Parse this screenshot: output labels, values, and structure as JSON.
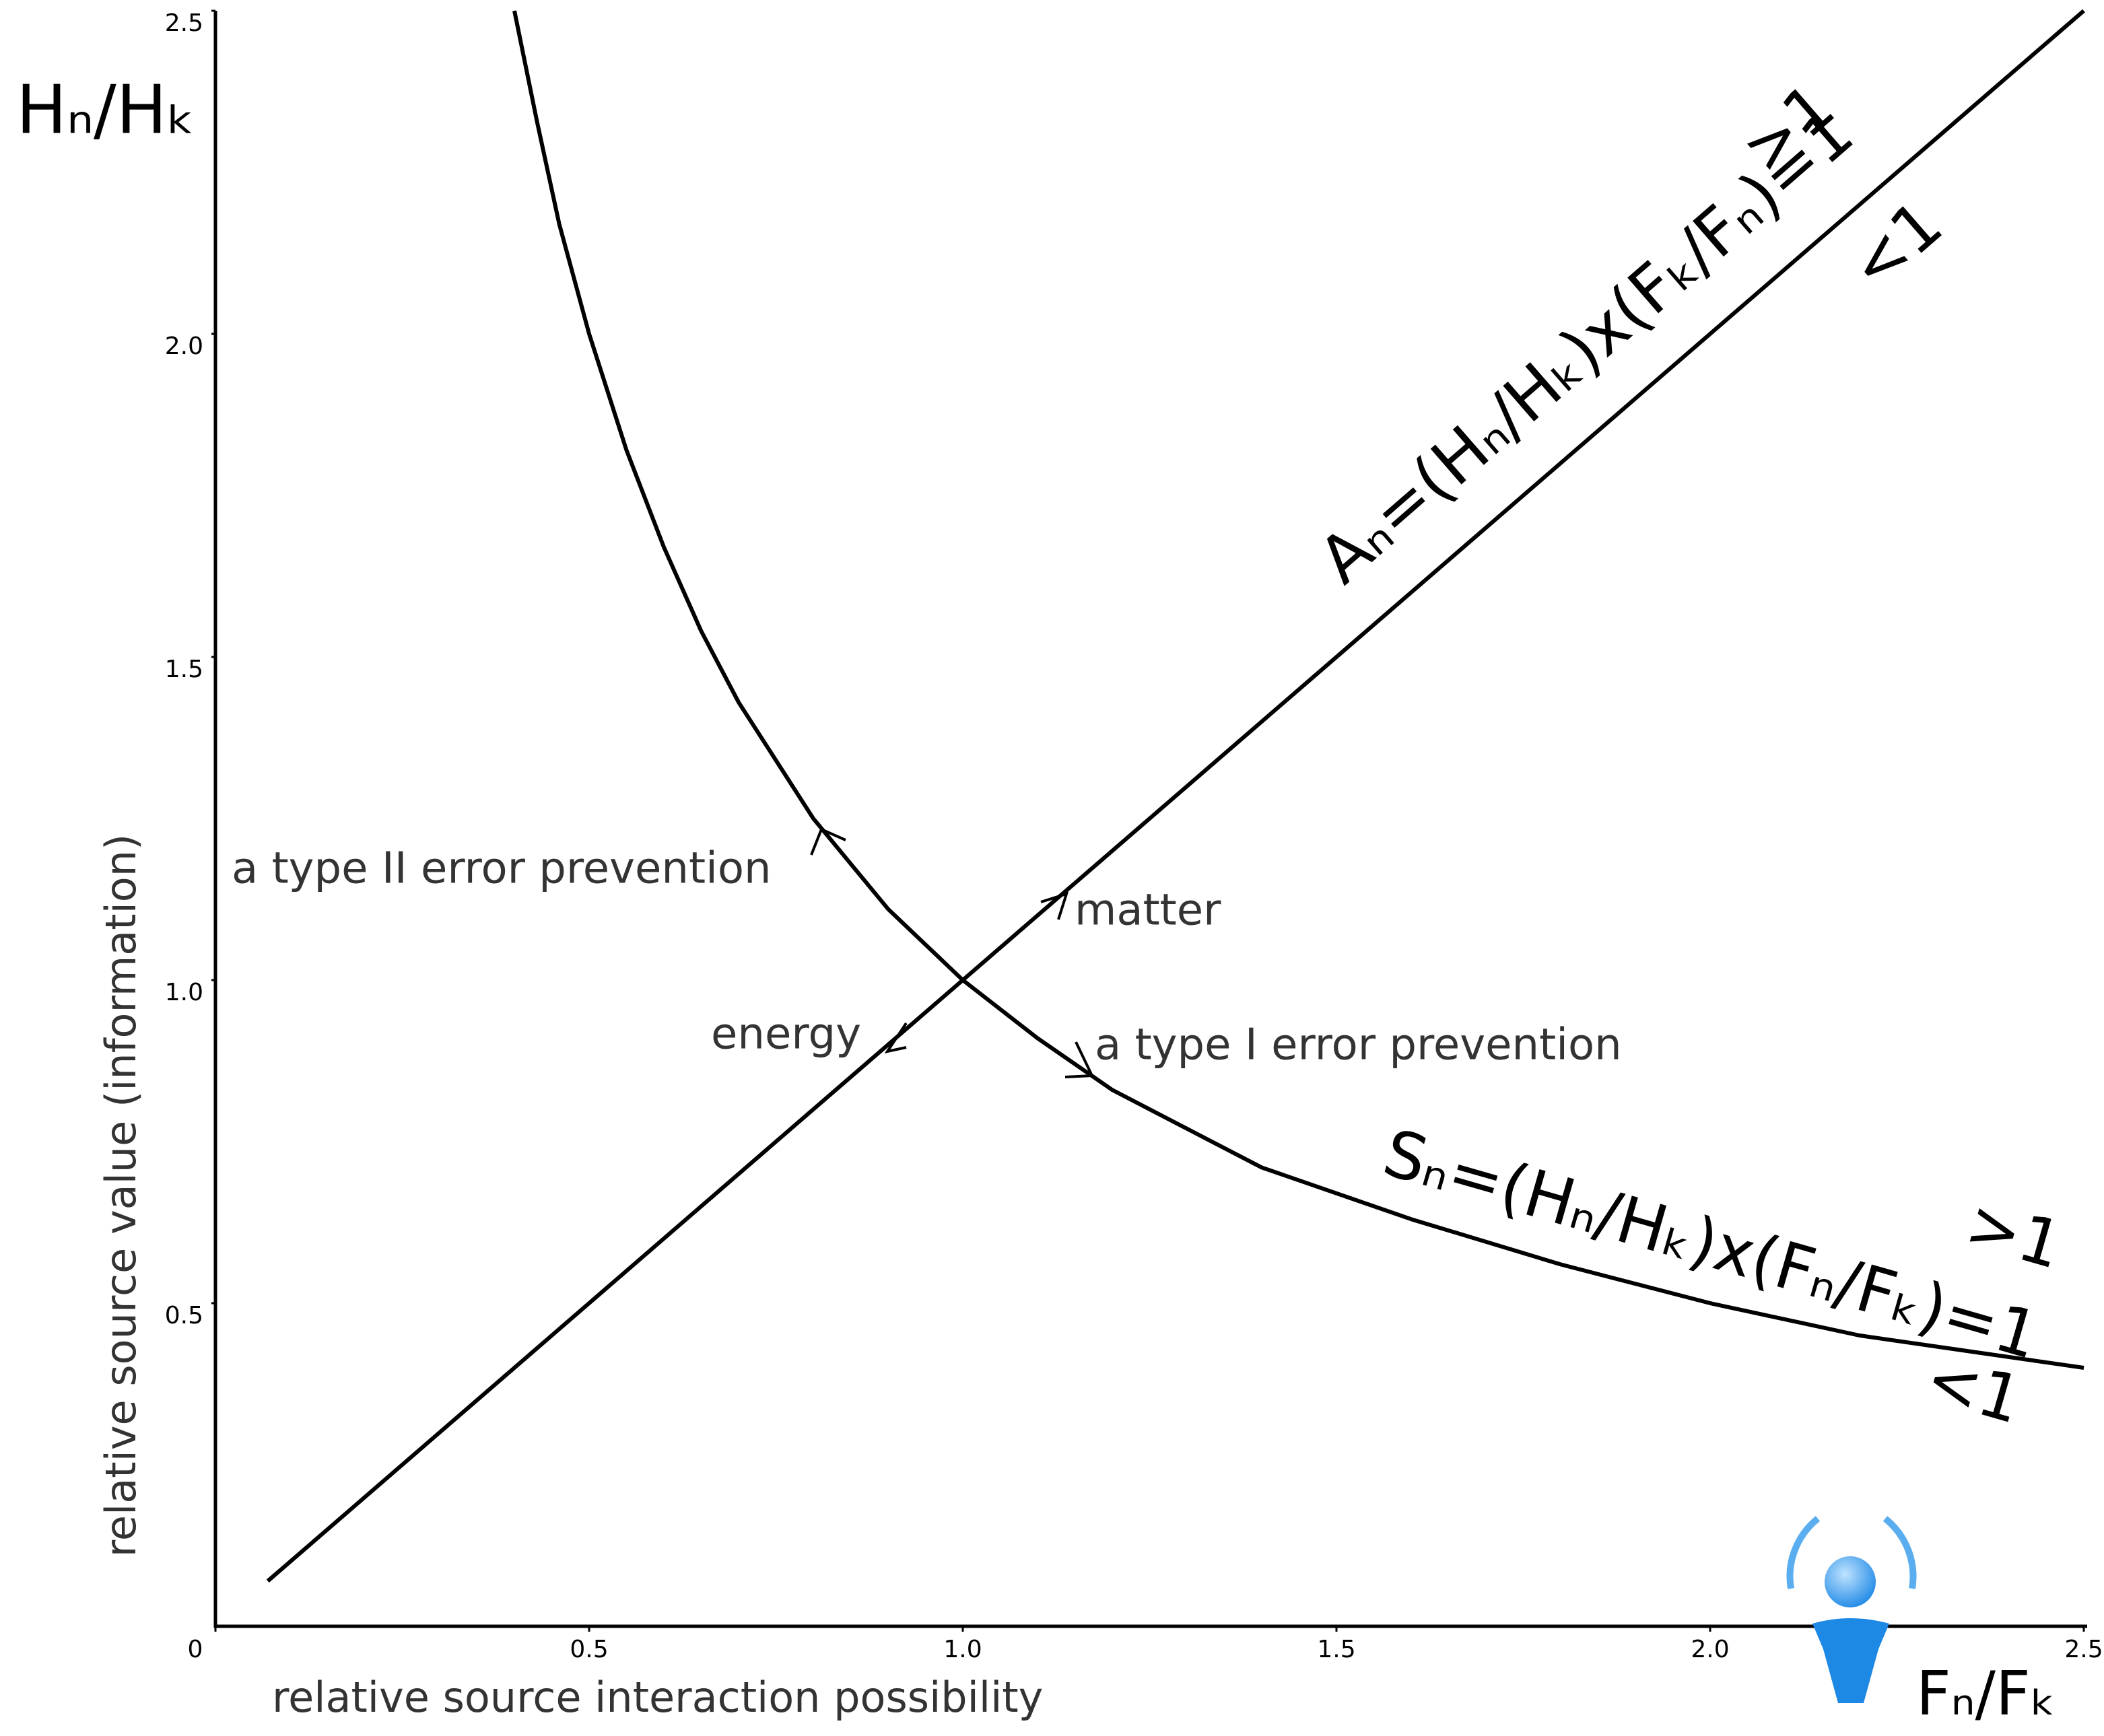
{
  "chart_data": {
    "type": "line",
    "y_symbol": "Hₙ/Hₖ",
    "x_symbol": "Fₙ/Fₖ",
    "ylabel": "relative source value (information)",
    "xlabel": "relative source interaction possibility",
    "x": [
      0.07,
      0.2,
      0.4,
      0.43,
      0.46,
      0.5,
      0.55,
      0.6,
      0.65,
      0.7,
      0.8,
      0.9,
      1.0,
      1.1,
      1.2,
      1.4,
      1.6,
      1.8,
      2.0,
      2.2,
      2.5
    ],
    "series": [
      {
        "name": "Aₙ=(Hₙ/Hₖ)x(Fₖ/Fₙ)=1",
        "color": "#000000",
        "values": [
          0.07,
          0.2,
          0.4,
          0.43,
          0.46,
          0.5,
          0.55,
          0.6,
          0.65,
          0.7,
          0.8,
          0.9,
          1.0,
          1.1,
          1.2,
          1.4,
          1.6,
          1.8,
          2.0,
          2.2,
          2.5
        ]
      },
      {
        "name": "Sₙ=(Hₙ/Hₖ)x(Fₙ/Fₖ)=1",
        "color": "#000000",
        "values": [
          null,
          null,
          2.5,
          2.33,
          2.17,
          2.0,
          1.82,
          1.67,
          1.54,
          1.43,
          1.25,
          1.11,
          1.0,
          0.91,
          0.83,
          0.71,
          0.63,
          0.56,
          0.5,
          0.45,
          0.4
        ]
      }
    ],
    "annotations": [
      "a type II error prevention",
      "matter",
      "energy",
      "a type I error prevention",
      ">1",
      "<1",
      ">1",
      "<1"
    ],
    "xlim": [
      0,
      2.5
    ],
    "ylim": [
      0,
      2.5
    ],
    "xticks": [
      0,
      0.5,
      {
        "value": 1,
        "label": "1.0"
      },
      1.5,
      {
        "value": 2,
        "label": "2.0"
      },
      2.5
    ],
    "yticks": [
      0.5,
      {
        "value": 1,
        "label": "1.0"
      },
      1.5,
      {
        "value": 2,
        "label": "2.0"
      },
      2.5
    ],
    "grid": false
  }
}
